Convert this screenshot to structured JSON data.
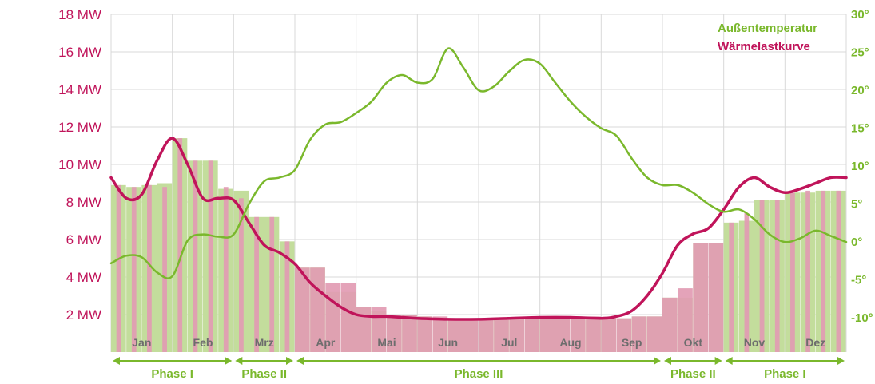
{
  "chart_data": {
    "type": "bar+line",
    "months": [
      "Jan",
      "Feb",
      "Mrz",
      "Apr",
      "Mai",
      "Jun",
      "Jul",
      "Aug",
      "Sep",
      "Okt",
      "Nov",
      "Dez"
    ],
    "left_axis": {
      "unit": "MW",
      "ticks": [
        2,
        4,
        6,
        8,
        10,
        12,
        14,
        16,
        18
      ],
      "tick_labels": [
        "2 MW",
        "4 MW",
        "6 MW",
        "8 MW",
        "10 MW",
        "12 MW",
        "14 MW",
        "16 MW",
        "18 MW"
      ],
      "ylim": [
        0,
        18
      ]
    },
    "right_axis": {
      "unit": "°C",
      "ticks": [
        -10,
        -5,
        0,
        5,
        10,
        15,
        20,
        25,
        30
      ],
      "tick_labels": [
        "-10°",
        "-5°",
        "0°",
        "5°",
        "10°",
        "15°",
        "20°",
        "25°",
        "30°"
      ],
      "ylim": [
        -14.5,
        30
      ]
    },
    "grid": true,
    "legend": {
      "placement": "top-right",
      "items": [
        {
          "label": "Außentemperatur",
          "color": "#7ab82c"
        },
        {
          "label": "Wärmelastkurve",
          "color": "#c0145a"
        }
      ]
    },
    "bars": [
      {
        "month": "Jan",
        "load": [
          8.9,
          8.8,
          8.9,
          8.8
        ],
        "temp": [
          8.9,
          8.8,
          8.9,
          9.0
        ]
      },
      {
        "month": "Feb",
        "load": [
          11.4,
          10.2,
          10.2,
          8.8
        ],
        "temp": [
          11.4,
          10.2,
          10.2,
          8.7
        ]
      },
      {
        "month": "Mrz",
        "load": [
          8.2,
          7.2,
          7.2,
          5.9
        ],
        "temp": [
          8.6,
          7.2,
          7.2,
          5.9
        ]
      },
      {
        "month": "Apr",
        "load": [
          4.5,
          4.5,
          3.7,
          3.7
        ],
        "temp": [
          4.5,
          4.5,
          3.2,
          3.2
        ]
      },
      {
        "month": "Mai",
        "load": [
          2.4,
          2.4,
          2.0,
          2.0
        ],
        "temp": [
          2.4,
          2.2,
          2.0,
          2.0
        ]
      },
      {
        "month": "Jun",
        "load": [
          1.9,
          1.9,
          1.8,
          1.8
        ],
        "temp": [
          1.9,
          1.8,
          1.8,
          1.8
        ]
      },
      {
        "month": "Jul",
        "load": [
          1.8,
          1.8,
          1.8,
          1.8
        ],
        "temp": [
          1.8,
          1.8,
          1.8,
          1.8
        ]
      },
      {
        "month": "Aug",
        "load": [
          1.9,
          1.9,
          1.9,
          1.9
        ],
        "temp": [
          1.9,
          1.8,
          1.8,
          1.8
        ]
      },
      {
        "month": "Sep",
        "load": [
          1.8,
          1.8,
          1.9,
          1.9
        ],
        "temp": [
          1.8,
          1.8,
          1.9,
          1.9
        ]
      },
      {
        "month": "Okt",
        "load": [
          2.9,
          3.4,
          5.8,
          5.8
        ],
        "temp": [
          2.9,
          2.9,
          5.8,
          5.8
        ]
      },
      {
        "month": "Nov",
        "load": [
          6.9,
          7.4,
          8.1,
          8.1
        ],
        "temp": [
          6.9,
          7.0,
          8.1,
          8.1
        ]
      },
      {
        "month": "Dez",
        "load": [
          8.5,
          8.6,
          8.6,
          8.6
        ],
        "temp": [
          8.5,
          8.5,
          8.6,
          8.6
        ]
      }
    ],
    "series": [
      {
        "name": "Wärmelastkurve",
        "axis": "left",
        "color": "#c0145a",
        "x": [
          0.0,
          0.25,
          0.5,
          0.75,
          1.0,
          1.25,
          1.5,
          1.75,
          2.0,
          2.25,
          2.5,
          2.75,
          3.0,
          3.25,
          3.5,
          3.75,
          4.0,
          4.25,
          4.5,
          4.75,
          5.0,
          5.5,
          6.0,
          6.5,
          7.0,
          7.5,
          8.0,
          8.25,
          8.5,
          8.75,
          9.0,
          9.25,
          9.5,
          9.75,
          10.0,
          10.25,
          10.5,
          10.75,
          11.0,
          11.25,
          11.5,
          11.75,
          12.0
        ],
        "y": [
          9.3,
          8.2,
          8.4,
          10.2,
          11.4,
          10.0,
          8.2,
          8.2,
          8.1,
          6.9,
          5.7,
          5.3,
          4.7,
          3.7,
          3.0,
          2.4,
          2.0,
          1.9,
          1.9,
          1.85,
          1.8,
          1.75,
          1.75,
          1.8,
          1.85,
          1.85,
          1.8,
          1.9,
          2.2,
          3.0,
          4.2,
          5.7,
          6.3,
          6.6,
          7.6,
          8.8,
          9.3,
          8.8,
          8.5,
          8.7,
          9.0,
          9.3,
          9.3
        ]
      },
      {
        "name": "Außentemperatur",
        "axis": "right",
        "color": "#7ab82c",
        "x": [
          0.0,
          0.25,
          0.5,
          0.75,
          1.0,
          1.25,
          1.5,
          1.75,
          2.0,
          2.25,
          2.5,
          2.75,
          3.0,
          3.25,
          3.5,
          3.75,
          4.0,
          4.25,
          4.5,
          4.75,
          5.0,
          5.25,
          5.5,
          5.75,
          6.0,
          6.25,
          6.5,
          6.75,
          7.0,
          7.25,
          7.5,
          7.75,
          8.0,
          8.25,
          8.5,
          8.75,
          9.0,
          9.25,
          9.5,
          9.75,
          10.0,
          10.25,
          10.5,
          10.75,
          11.0,
          11.25,
          11.5,
          11.75,
          12.0
        ],
        "y": [
          -2.8,
          -1.8,
          -2.0,
          -4.0,
          -4.5,
          0.2,
          1.0,
          0.7,
          1.0,
          5.0,
          8.0,
          8.5,
          9.5,
          13.5,
          15.5,
          15.8,
          17.0,
          18.5,
          21.0,
          22.0,
          21.0,
          21.5,
          25.5,
          23.0,
          20.0,
          20.5,
          22.5,
          24.0,
          23.5,
          21.0,
          18.5,
          16.5,
          15.0,
          14.0,
          11.0,
          8.5,
          7.5,
          7.5,
          6.5,
          5.0,
          4.0,
          4.3,
          3.0,
          1.0,
          0.0,
          0.5,
          1.5,
          0.8,
          0.0
        ]
      }
    ],
    "phases": [
      {
        "label": "Phase I",
        "start": 0,
        "end": 2
      },
      {
        "label": "Phase II",
        "start": 2,
        "end": 3
      },
      {
        "label": "Phase III",
        "start": 3,
        "end": 9
      },
      {
        "label": "Phase II",
        "start": 9,
        "end": 10
      },
      {
        "label": "Phase I",
        "start": 10,
        "end": 12
      }
    ]
  }
}
